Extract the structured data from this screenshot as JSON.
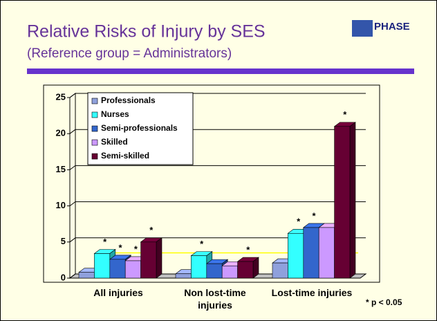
{
  "logo": "PHASE",
  "chart_data": {
    "type": "bar3d",
    "title": "Relative Risks of Injury by SES",
    "subtitle": "(Reference group = Administrators)",
    "footnote": "* p < 0.05",
    "categories": [
      "All injuries",
      "Non lost-time injuries",
      "Lost-time injuries"
    ],
    "series": [
      {
        "name": "Professionals",
        "color": "#8fa0dc",
        "values": [
          0.8,
          0.6,
          2.1
        ],
        "markers": [
          null,
          null,
          null
        ]
      },
      {
        "name": "Nurses",
        "color": "#33ffff",
        "values": [
          3.4,
          3.1,
          6.2
        ],
        "markers": [
          "*",
          "*",
          "*"
        ]
      },
      {
        "name": "Semi-professionals",
        "color": "#3366cc",
        "values": [
          2.6,
          2.0,
          7.0
        ],
        "markers": [
          "*",
          null,
          "*"
        ]
      },
      {
        "name": "Skilled",
        "color": "#cc99ff",
        "values": [
          2.4,
          1.7,
          7.0
        ],
        "markers": [
          "*",
          null,
          null
        ]
      },
      {
        "name": "Semi-skilled",
        "color": "#660033",
        "values": [
          5.0,
          2.3,
          21.0
        ],
        "markers": [
          "*",
          "*",
          "*"
        ]
      }
    ],
    "reference_line": 3.5,
    "reference_color": "#ffff00",
    "ylim": [
      0,
      25
    ],
    "yticks": [
      0,
      5,
      10,
      15,
      20,
      25
    ],
    "grid": true
  }
}
